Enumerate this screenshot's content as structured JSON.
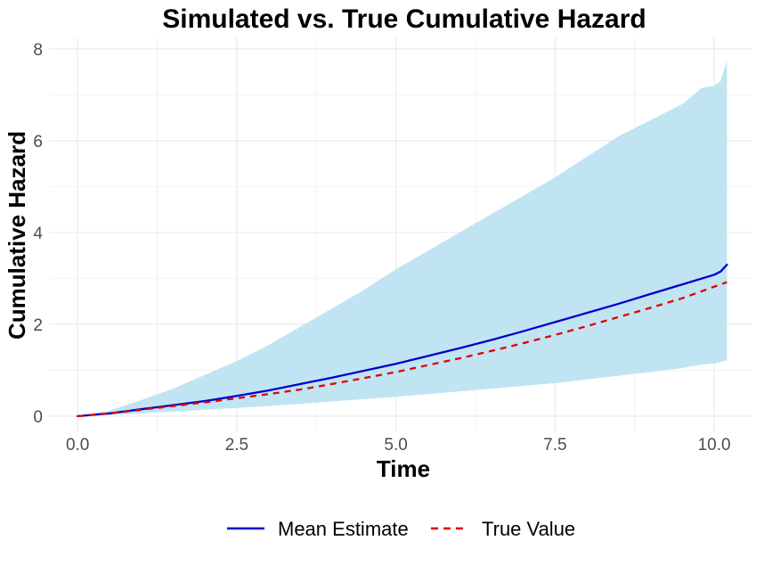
{
  "chart_data": {
    "type": "line",
    "title": "Simulated vs. True Cumulative Hazard",
    "xlabel": "Time",
    "ylabel": "Cumulative Hazard",
    "xlim": [
      -0.45,
      10.6
    ],
    "ylim": [
      -0.35,
      8.25
    ],
    "xticks": [
      0.0,
      2.5,
      5.0,
      7.5,
      10.0
    ],
    "xtick_labels": [
      "0.0",
      "2.5",
      "5.0",
      "7.5",
      "10.0"
    ],
    "yticks": [
      0,
      2,
      4,
      6,
      8
    ],
    "ytick_labels": [
      "0",
      "2",
      "4",
      "6",
      "8"
    ],
    "grid": true,
    "legend_position": "bottom",
    "band": {
      "color": "#c1e4f2",
      "x": [
        0.0,
        0.5,
        1.0,
        1.5,
        2.0,
        2.5,
        3.0,
        3.5,
        4.0,
        4.5,
        5.0,
        5.5,
        6.0,
        6.5,
        7.0,
        7.5,
        8.0,
        8.5,
        9.0,
        9.5,
        9.8,
        10.0,
        10.1,
        10.2
      ],
      "upper": [
        0.0,
        0.12,
        0.35,
        0.6,
        0.9,
        1.2,
        1.55,
        1.95,
        2.35,
        2.75,
        3.2,
        3.6,
        4.0,
        4.4,
        4.8,
        5.2,
        5.65,
        6.1,
        6.45,
        6.8,
        7.15,
        7.2,
        7.3,
        7.75
      ],
      "lower": [
        0.0,
        0.02,
        0.06,
        0.1,
        0.14,
        0.18,
        0.22,
        0.27,
        0.32,
        0.37,
        0.42,
        0.48,
        0.54,
        0.6,
        0.66,
        0.72,
        0.8,
        0.88,
        0.96,
        1.05,
        1.12,
        1.15,
        1.18,
        1.22
      ]
    },
    "series": [
      {
        "name": "Mean Estimate",
        "color": "#0000cd",
        "dash": "solid",
        "x": [
          0.0,
          0.5,
          1.0,
          1.5,
          2.0,
          2.5,
          3.0,
          3.5,
          4.0,
          4.5,
          5.0,
          5.5,
          6.0,
          6.5,
          7.0,
          7.5,
          8.0,
          8.5,
          9.0,
          9.5,
          10.0,
          10.1,
          10.2
        ],
        "values": [
          0.0,
          0.06,
          0.15,
          0.24,
          0.33,
          0.44,
          0.56,
          0.7,
          0.84,
          0.99,
          1.14,
          1.31,
          1.48,
          1.66,
          1.85,
          2.05,
          2.25,
          2.45,
          2.66,
          2.87,
          3.08,
          3.15,
          3.3
        ]
      },
      {
        "name": "True Value",
        "color": "#e00000",
        "dash": "dashed",
        "x": [
          0.0,
          0.5,
          1.0,
          1.5,
          2.0,
          2.5,
          3.0,
          3.5,
          4.0,
          4.5,
          5.0,
          5.5,
          6.0,
          6.5,
          7.0,
          7.5,
          8.0,
          8.5,
          9.0,
          9.5,
          10.0,
          10.2
        ],
        "values": [
          0.0,
          0.06,
          0.14,
          0.22,
          0.3,
          0.39,
          0.48,
          0.58,
          0.7,
          0.83,
          0.96,
          1.11,
          1.26,
          1.42,
          1.59,
          1.77,
          1.96,
          2.16,
          2.36,
          2.57,
          2.82,
          2.92
        ]
      }
    ]
  }
}
